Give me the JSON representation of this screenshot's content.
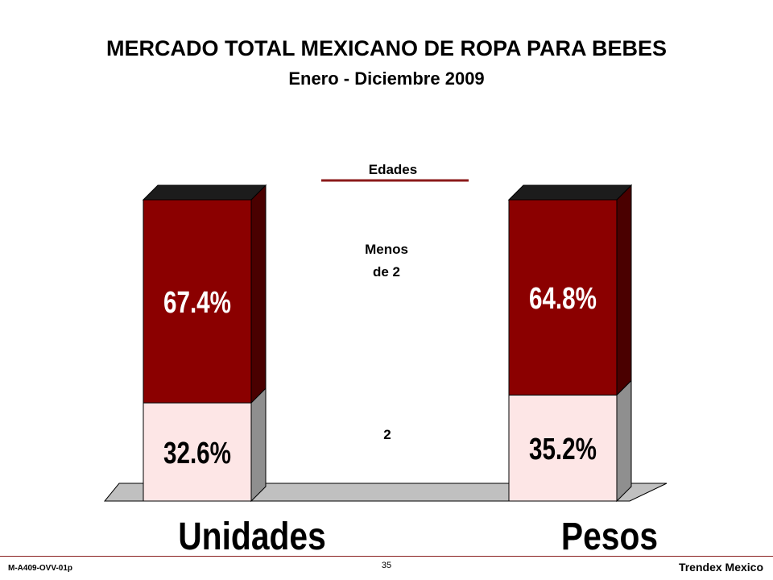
{
  "slide": {
    "title": "MERCADO TOTAL MEXICANO DE ROPA PARA BEBES",
    "subtitle": "Enero - Diciembre 2009"
  },
  "legend": {
    "heading": "Edades",
    "items": [
      {
        "label_line1": "Menos",
        "label_line2": "de 2",
        "color": "#8b0000"
      },
      {
        "label_line1": "2",
        "label_line2": "",
        "color": "#fde6e6"
      }
    ]
  },
  "chart_data": {
    "type": "bar",
    "stacked": true,
    "categories": [
      "Unidades",
      "Pesos"
    ],
    "series": [
      {
        "name": "2",
        "values": [
          32.6,
          35.2
        ],
        "labels": [
          "32.6%",
          "35.2%"
        ],
        "color": "#fde6e6"
      },
      {
        "name": "Menos de 2",
        "values": [
          67.4,
          64.8
        ],
        "labels": [
          "67.4%",
          "64.8%"
        ],
        "color": "#8b0000"
      }
    ],
    "ylim": [
      0,
      100
    ],
    "grid": false,
    "legend_position": "center"
  },
  "footer": {
    "code": "M-A409-OVV-01p",
    "page": "35",
    "brand": "Trendex Mexico"
  }
}
